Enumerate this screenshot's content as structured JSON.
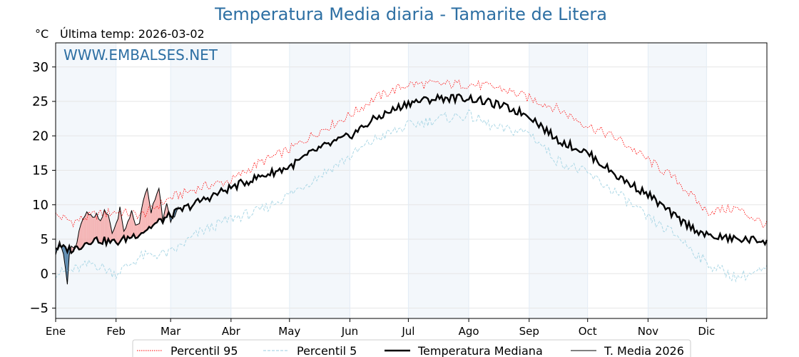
{
  "chart_data": {
    "type": "line",
    "title": "Temperatura Media diaria - Tamarite de Litera",
    "unit_label": "°C",
    "last_temp_label": "Última temp: 2026-03-02",
    "watermark": "WWW.EMBALSES.NET",
    "ylim": [
      -6.5,
      33.5
    ],
    "yticks": [
      -5,
      0,
      5,
      10,
      15,
      20,
      25,
      30
    ],
    "xlim": [
      1,
      366
    ],
    "months": [
      {
        "label": "Ene",
        "day": 1
      },
      {
        "label": "Feb",
        "day": 32
      },
      {
        "label": "Mar",
        "day": 60
      },
      {
        "label": "Abr",
        "day": 91
      },
      {
        "label": "May",
        "day": 121
      },
      {
        "label": "Jun",
        "day": 152
      },
      {
        "label": "Jul",
        "day": 182
      },
      {
        "label": "Ago",
        "day": 213
      },
      {
        "label": "Sep",
        "day": 244
      },
      {
        "label": "Oct",
        "day": 274
      },
      {
        "label": "Nov",
        "day": 305
      },
      {
        "label": "Dic",
        "day": 335
      }
    ],
    "grid": true,
    "legend_position": "bottom",
    "series": [
      {
        "name": "Percentil 95",
        "color": "#ff0000",
        "style": "dotted",
        "x": [
          1,
          10,
          20,
          32,
          45,
          60,
          75,
          91,
          105,
          121,
          135,
          152,
          165,
          182,
          198,
          213,
          228,
          244,
          258,
          274,
          290,
          305,
          320,
          335,
          350,
          366
        ],
        "y": [
          8.5,
          7.5,
          8.5,
          9,
          8.5,
          11,
          12.5,
          13.5,
          16,
          18,
          20.5,
          23,
          25.5,
          27.5,
          27.5,
          27.5,
          27,
          25.5,
          24,
          21.5,
          19.5,
          16.5,
          13.5,
          9,
          9.5,
          7
        ]
      },
      {
        "name": "Percentil 5",
        "color": "#add8e6",
        "style": "dashed",
        "x": [
          1,
          10,
          20,
          32,
          45,
          60,
          75,
          91,
          105,
          121,
          135,
          152,
          165,
          182,
          198,
          213,
          228,
          244,
          258,
          274,
          290,
          305,
          320,
          335,
          350,
          366
        ],
        "y": [
          0,
          0.5,
          1.5,
          0,
          2.5,
          3,
          6,
          8,
          9,
          11.5,
          14,
          17,
          19.5,
          21.5,
          22.5,
          23,
          21,
          20.5,
          16.5,
          14.5,
          11.5,
          8,
          5.5,
          1.5,
          -0.5,
          0.5
        ]
      },
      {
        "name": "Temperatura Mediana",
        "color": "#000000",
        "style": "solid-thick",
        "x": [
          1,
          10,
          20,
          32,
          45,
          60,
          75,
          91,
          105,
          121,
          135,
          152,
          165,
          182,
          198,
          213,
          228,
          244,
          258,
          274,
          290,
          305,
          320,
          335,
          350,
          366
        ],
        "y": [
          3.8,
          3.5,
          5,
          4.5,
          6,
          8.5,
          10.5,
          12.5,
          14,
          15.5,
          18,
          20,
          22.5,
          24.8,
          25.5,
          25.5,
          24.5,
          23,
          19.5,
          17.5,
          14,
          11.5,
          8,
          5.5,
          5,
          4.8
        ]
      },
      {
        "name": "T. Media 2026",
        "color": "#000000",
        "style": "solid-thin",
        "x": [
          1,
          3,
          5,
          6,
          7,
          8,
          9,
          11,
          12,
          13,
          15,
          17,
          20,
          22,
          24,
          26,
          28,
          30,
          32,
          34,
          36,
          38,
          40,
          42,
          44,
          46,
          48,
          50,
          52,
          54,
          56,
          58,
          60,
          62,
          64
        ],
        "y": [
          2.5,
          5,
          3,
          0.5,
          -1.5,
          3,
          4,
          3.5,
          4.5,
          6.5,
          8,
          9,
          8,
          8.5,
          7.5,
          9,
          8.5,
          6,
          7,
          9.5,
          6,
          7.5,
          9,
          7,
          7.5,
          10.5,
          12.5,
          9,
          11,
          12.5,
          8,
          10,
          7.5,
          8.5,
          9.5
        ]
      }
    ]
  }
}
